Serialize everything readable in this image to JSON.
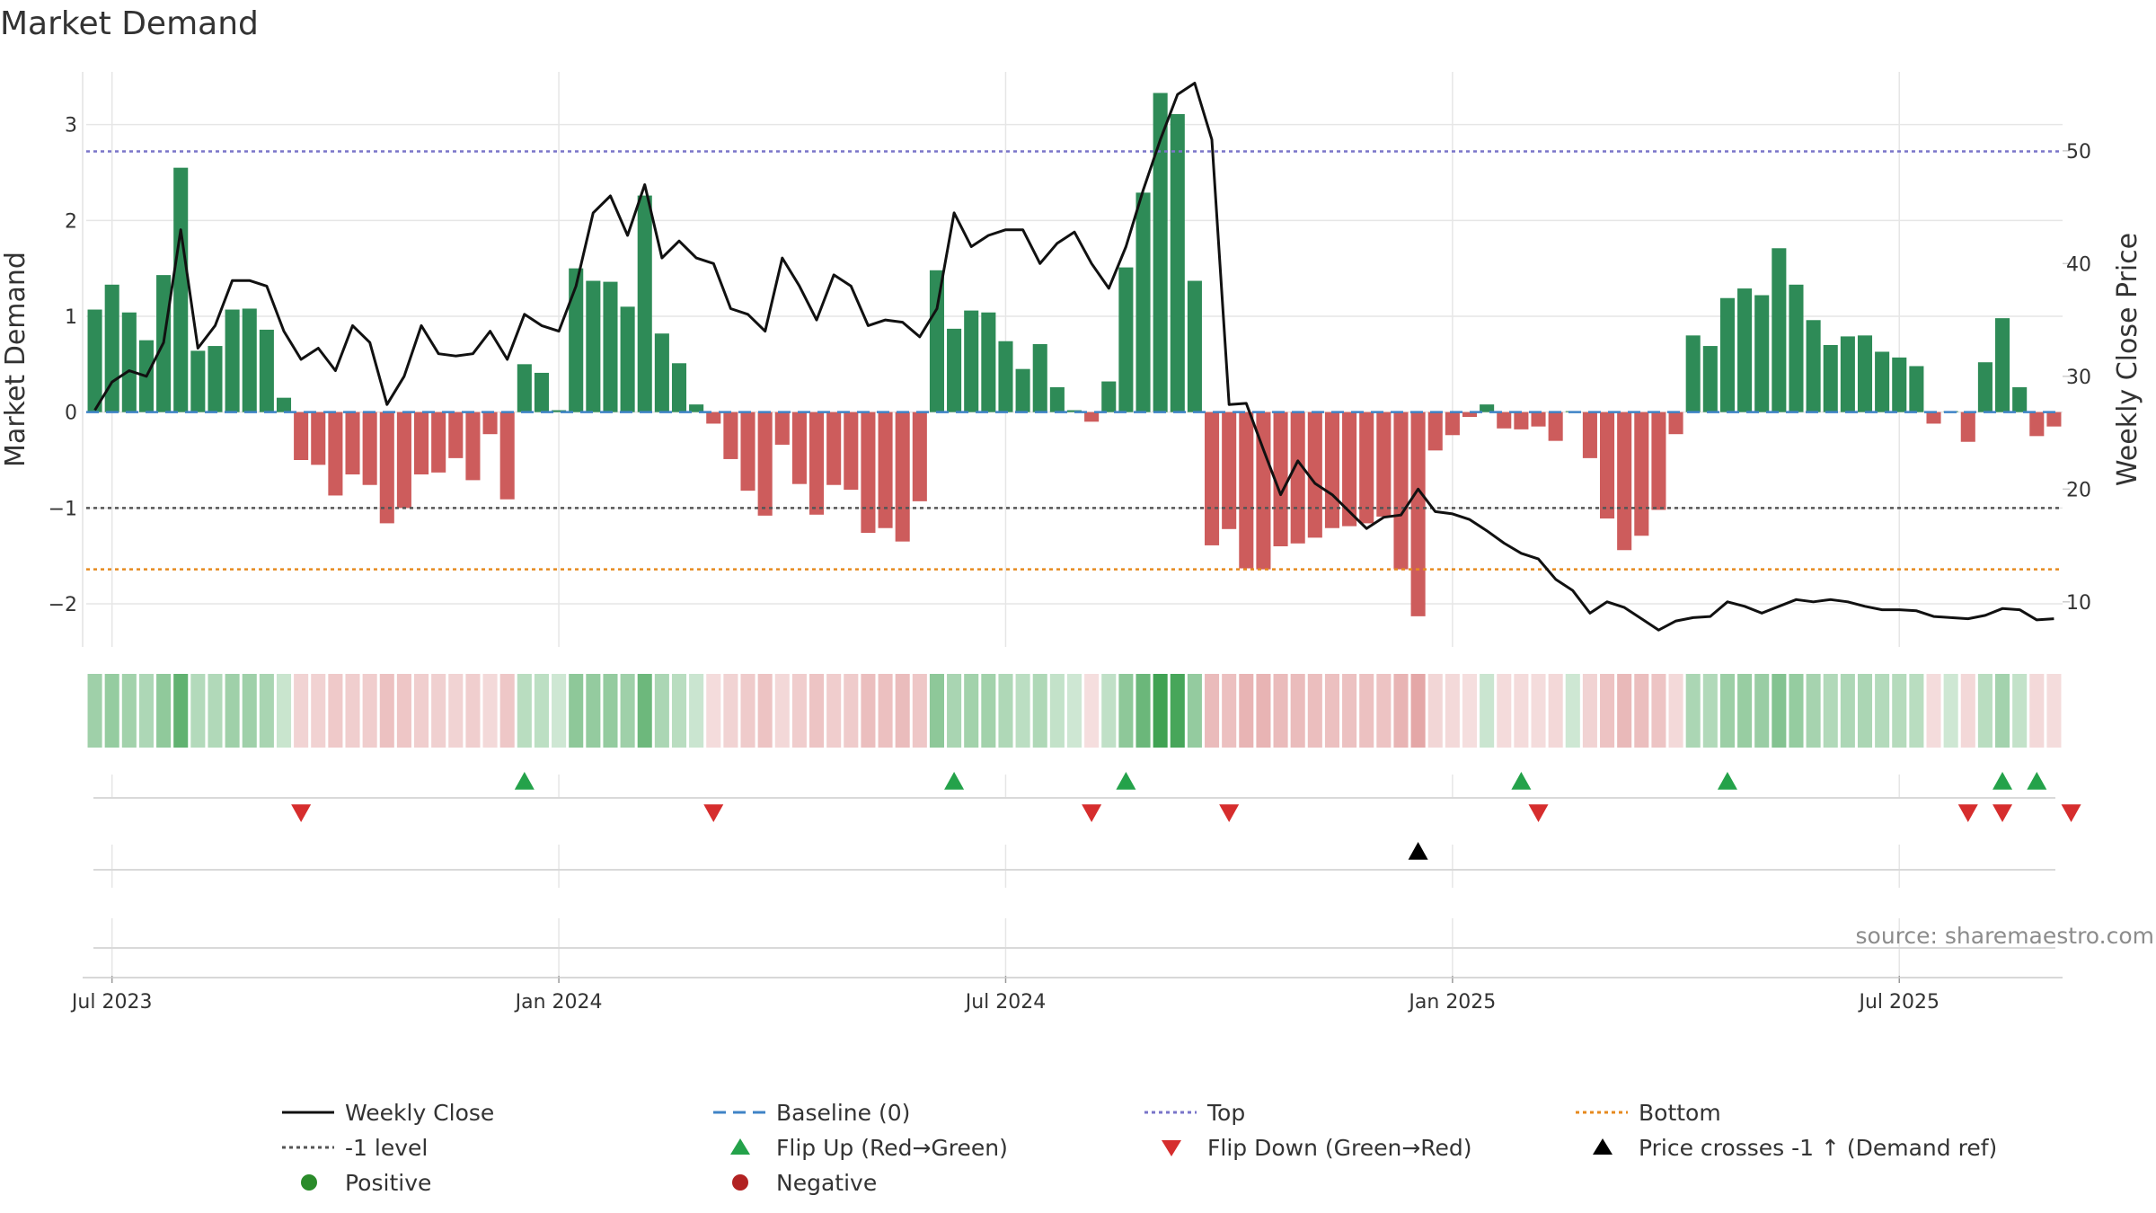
{
  "chart_data": {
    "type": "bar",
    "title": "Market Demand",
    "ylabel": "Market Demand",
    "y2label": "Weekly Close Price",
    "ylim": [
      -2.45,
      3.55
    ],
    "y2lim": [
      6,
      57
    ],
    "yticks": [
      -2,
      -1,
      0,
      1,
      2,
      3
    ],
    "y2ticks": [
      10,
      20,
      30,
      40,
      50
    ],
    "x_tick_labels": [
      "Jul 2023",
      "Jan 2024",
      "Jul 2024",
      "Jan 2025",
      "Jul 2025"
    ],
    "x_tick_weeks": [
      1,
      27,
      53,
      79,
      105
    ],
    "reference_lines": {
      "top": 2.72,
      "minus_one": -1,
      "bottom": -1.64,
      "baseline": 0
    },
    "demand": [
      1.07,
      1.33,
      1.04,
      0.75,
      1.43,
      2.55,
      0.64,
      0.69,
      1.07,
      1.08,
      0.86,
      0.15,
      -0.5,
      -0.55,
      -0.87,
      -0.65,
      -0.76,
      -1.16,
      -1.0,
      -0.65,
      -0.63,
      -0.48,
      -0.71,
      -0.23,
      -0.91,
      0.5,
      0.41,
      0.02,
      1.5,
      1.37,
      1.36,
      1.1,
      2.26,
      0.82,
      0.51,
      0.08,
      -0.12,
      -0.49,
      -0.82,
      -1.08,
      -0.34,
      -0.75,
      -1.07,
      -0.76,
      -0.81,
      -1.26,
      -1.21,
      -1.35,
      -0.93,
      1.48,
      0.87,
      1.06,
      1.04,
      0.74,
      0.45,
      0.71,
      0.26,
      0.02,
      -0.1,
      0.32,
      1.51,
      2.29,
      3.33,
      3.11,
      1.37,
      -1.39,
      -1.22,
      -1.63,
      -1.64,
      -1.4,
      -1.37,
      -1.31,
      -1.21,
      -1.19,
      -1.16,
      -1.09,
      -1.64,
      -2.13,
      -0.4,
      -0.24,
      -0.05,
      0.08,
      -0.17,
      -0.18,
      -0.15,
      -0.3,
      0.01,
      -0.48,
      -1.11,
      -1.44,
      -1.29,
      -1.02,
      -0.23,
      0.8,
      0.69,
      1.19,
      1.29,
      1.22,
      1.71,
      1.33,
      0.96,
      0.7,
      0.79,
      0.8,
      0.63,
      0.57,
      0.48,
      -0.12,
      0.01,
      -0.31,
      0.52,
      0.98,
      0.26,
      -0.25,
      -0.15
    ],
    "weekly_close": [
      27.0,
      29.5,
      30.5,
      30.0,
      33.0,
      43.0,
      32.5,
      34.5,
      38.5,
      38.5,
      38.0,
      34.0,
      31.5,
      32.5,
      30.5,
      34.5,
      33.0,
      27.5,
      30.0,
      34.5,
      32.0,
      31.8,
      32.0,
      34.0,
      31.5,
      35.5,
      34.5,
      34.0,
      38.0,
      44.5,
      46.0,
      42.5,
      47.0,
      40.5,
      42.0,
      40.5,
      40.0,
      36.0,
      35.5,
      34.0,
      40.5,
      38.0,
      35.0,
      39.0,
      38.0,
      34.5,
      35.0,
      34.8,
      33.5,
      36.0,
      44.5,
      41.5,
      42.5,
      43.0,
      43.0,
      40.0,
      41.8,
      42.8,
      40.0,
      37.8,
      41.5,
      46.5,
      51.0,
      55.0,
      56.0,
      51.0,
      27.5,
      27.6,
      23.5,
      19.5,
      22.5,
      20.5,
      19.5,
      18.0,
      16.5,
      17.5,
      17.7,
      20.0,
      18.0,
      17.8,
      17.3,
      16.3,
      15.2,
      14.3,
      13.8,
      12.0,
      11.0,
      9.0,
      10.0,
      9.5,
      8.5,
      7.5,
      8.3,
      8.6,
      8.7,
      10.0,
      9.6,
      9.0,
      9.6,
      10.2,
      10.0,
      10.2,
      10.0,
      9.6,
      9.3,
      9.3,
      9.2,
      8.7,
      8.6,
      8.5,
      8.8,
      9.4,
      9.3,
      8.4,
      8.5
    ],
    "flip_up_weeks": [
      25,
      50,
      60,
      83,
      95,
      111,
      113
    ],
    "flip_down_weeks": [
      12,
      36,
      58,
      66,
      84,
      109,
      111,
      115
    ],
    "price_cross_weeks": [
      77
    ],
    "legend": [
      {
        "label": "Weekly Close",
        "style": "line-solid",
        "color": "#111111"
      },
      {
        "label": "Baseline (0)",
        "style": "line-dash",
        "color": "#3f83c6"
      },
      {
        "label": "Top",
        "style": "line-dot",
        "color": "#7a75c9"
      },
      {
        "label": "Bottom",
        "style": "line-dot",
        "color": "#e68a1f"
      },
      {
        "label": "-1 level",
        "style": "line-dot",
        "color": "#555555"
      },
      {
        "label": "Flip Up (Red→Green)",
        "style": "triangle-up",
        "color": "#24a24a"
      },
      {
        "label": "Flip Down (Green→Red)",
        "style": "triangle-down",
        "color": "#d62d2d"
      },
      {
        "label": "Price crosses -1 ↑ (Demand ref)",
        "style": "triangle-up",
        "color": "#000000"
      },
      {
        "label": "Positive",
        "style": "circle",
        "color": "#2a8b2a"
      },
      {
        "label": "Negative",
        "style": "circle",
        "color": "#b22222"
      }
    ],
    "source": "source: sharemaestro.com"
  },
  "colors": {
    "positive_bar": "#2e8b57",
    "negative_bar": "#cd5c5c",
    "grid": "#e6e6e6"
  }
}
